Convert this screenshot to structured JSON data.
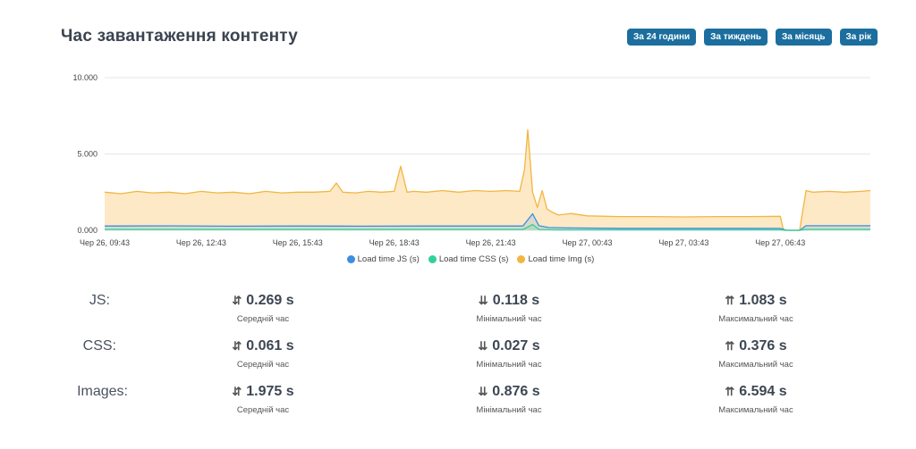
{
  "header": {
    "title": "Час завантаження контенту",
    "buttons": [
      "За 24 години",
      "За тиждень",
      "За місяць",
      "За рік"
    ]
  },
  "colors": {
    "js": "#3b8ee0",
    "css": "#2fd19a",
    "img": "#f3b53f",
    "img_fill": "#fde9c6",
    "button": "#1b6e9e"
  },
  "chart_data": {
    "type": "area",
    "y_ticks": [
      "10.000",
      "5.000",
      "0.000"
    ],
    "ylim": [
      0,
      10
    ],
    "x_ticks": [
      "Чер 26, 09:43",
      "Чер 26, 12:43",
      "Чер 26, 15:43",
      "Чер 26, 18:43",
      "Чер 26, 21:43",
      "Чер 27, 00:43",
      "Чер 27, 03:43",
      "Чер 27, 06:43"
    ],
    "x_hours": [
      0,
      3,
      6,
      9,
      12,
      15,
      18,
      21
    ],
    "x_range_hours": [
      0,
      23.8
    ],
    "legend": [
      "Load time JS (s)",
      "Load time CSS (s)",
      "Load time Img (s)"
    ],
    "series": [
      {
        "name": "Load time JS (s)",
        "x": [
          0,
          2,
          4,
          6,
          8,
          10,
          12,
          13.0,
          13.3,
          13.5,
          13.8,
          14.5,
          16,
          18,
          20,
          21.0,
          21.2,
          21.6,
          21.8,
          22,
          23.8
        ],
        "values": [
          0.28,
          0.29,
          0.27,
          0.28,
          0.27,
          0.28,
          0.28,
          0.28,
          1.08,
          0.3,
          0.18,
          0.15,
          0.13,
          0.13,
          0.13,
          0.12,
          0.0,
          0.0,
          0.3,
          0.3,
          0.3
        ]
      },
      {
        "name": "Load time CSS (s)",
        "x": [
          0,
          4,
          8,
          12,
          13.0,
          13.3,
          13.5,
          14,
          16,
          20,
          21.0,
          21.2,
          21.6,
          21.8,
          23.8
        ],
        "values": [
          0.06,
          0.06,
          0.06,
          0.06,
          0.06,
          0.38,
          0.06,
          0.03,
          0.03,
          0.03,
          0.03,
          0.0,
          0.0,
          0.06,
          0.06
        ]
      },
      {
        "name": "Load time Img (s)",
        "x": [
          0,
          0.5,
          1,
          1.5,
          2,
          2.5,
          3,
          3.5,
          4,
          4.5,
          5,
          5.5,
          6,
          6.5,
          7.0,
          7.2,
          7.4,
          7.8,
          8.2,
          8.6,
          9.0,
          9.2,
          9.4,
          9.6,
          10,
          10.5,
          11,
          11.5,
          12,
          12.5,
          12.9,
          13.05,
          13.15,
          13.3,
          13.45,
          13.6,
          13.75,
          13.9,
          14.1,
          14.5,
          15,
          16,
          17,
          18,
          19,
          20,
          21.0,
          21.1,
          21.6,
          21.8,
          22,
          22.5,
          23,
          23.5,
          23.8
        ],
        "values": [
          2.5,
          2.4,
          2.55,
          2.45,
          2.5,
          2.4,
          2.55,
          2.45,
          2.5,
          2.4,
          2.55,
          2.45,
          2.5,
          2.5,
          2.55,
          3.1,
          2.5,
          2.45,
          2.55,
          2.5,
          2.55,
          4.2,
          2.5,
          2.55,
          2.5,
          2.6,
          2.5,
          2.6,
          2.55,
          2.6,
          2.55,
          4.0,
          6.59,
          2.5,
          1.5,
          2.6,
          1.4,
          1.2,
          1.0,
          1.1,
          0.95,
          0.9,
          0.9,
          0.88,
          0.9,
          0.9,
          0.92,
          0.0,
          0.0,
          2.6,
          2.5,
          2.55,
          2.5,
          2.55,
          2.6
        ]
      }
    ]
  },
  "stats": [
    {
      "label": "JS:",
      "avg": "0.269 s",
      "min": "0.118 s",
      "max": "1.083 s"
    },
    {
      "label": "CSS:",
      "avg": "0.061 s",
      "min": "0.027 s",
      "max": "0.376 s"
    },
    {
      "label": "Images:",
      "avg": "1.975 s",
      "min": "0.876 s",
      "max": "6.594 s"
    }
  ],
  "stat_captions": {
    "avg": "Середній час",
    "min": "Мінімальний час",
    "max": "Максимальний час"
  },
  "icons": {
    "avg": "arrows-up-down-icon",
    "min": "arrow-down-to-line-icon",
    "max": "arrow-up-to-line-icon"
  }
}
